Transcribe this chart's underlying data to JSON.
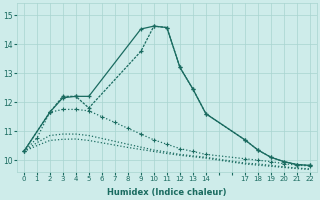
{
  "xlabel": "Humidex (Indice chaleur)",
  "bg_color": "#ceecea",
  "grid_color": "#a8d5d0",
  "line_color": "#1a6b60",
  "xtick_labels": [
    "0",
    "1",
    "2",
    "3",
    "4",
    "5",
    "6",
    "7",
    "8",
    "9",
    "10",
    "11",
    "12",
    "13",
    "14",
    "",
    "",
    "17",
    "18",
    "19",
    "20",
    "21",
    "22"
  ],
  "xtick_positions": [
    0,
    1,
    2,
    3,
    4,
    5,
    6,
    7,
    8,
    9,
    10,
    11,
    12,
    13,
    14,
    15,
    16,
    17,
    18,
    19,
    20,
    21,
    22
  ],
  "yticks": [
    10,
    11,
    12,
    13,
    14,
    15
  ],
  "ylim": [
    9.6,
    15.4
  ],
  "xlim": [
    -0.5,
    22.5
  ],
  "series1_x": [
    0,
    2,
    3,
    4,
    5,
    9,
    10,
    11,
    12,
    13,
    14,
    17,
    18,
    19,
    20,
    21,
    22
  ],
  "series1_y": [
    10.3,
    11.65,
    12.15,
    12.2,
    12.2,
    14.52,
    14.62,
    14.57,
    13.2,
    12.45,
    11.6,
    10.7,
    10.35,
    10.1,
    9.95,
    9.85,
    9.82
  ],
  "series2_x": [
    0,
    2,
    3,
    4,
    5,
    9,
    10,
    11,
    12,
    13,
    14,
    17,
    18,
    19,
    20,
    21,
    22
  ],
  "series2_y": [
    10.3,
    11.65,
    12.2,
    12.2,
    11.8,
    13.75,
    14.62,
    14.57,
    13.2,
    12.45,
    11.6,
    10.7,
    10.35,
    10.1,
    9.95,
    9.85,
    9.82
  ],
  "series3_x": [
    0,
    1,
    2,
    3,
    4,
    5,
    6,
    7,
    8,
    9,
    10,
    11,
    12,
    13,
    14,
    17,
    18,
    19,
    20,
    21,
    22
  ],
  "series3_y": [
    10.3,
    10.75,
    11.65,
    11.75,
    11.75,
    11.7,
    11.5,
    11.3,
    11.1,
    10.9,
    10.7,
    10.55,
    10.4,
    10.3,
    10.2,
    10.05,
    10.0,
    9.95,
    9.88,
    9.83,
    9.8
  ],
  "series4_x": [
    0,
    1,
    2,
    3,
    4,
    5,
    6,
    7,
    8,
    9,
    10,
    11,
    12,
    13,
    14,
    17,
    18,
    19,
    20,
    21,
    22
  ],
  "series4_y": [
    10.3,
    10.6,
    10.85,
    10.9,
    10.9,
    10.85,
    10.75,
    10.65,
    10.55,
    10.45,
    10.35,
    10.28,
    10.2,
    10.15,
    10.1,
    9.9,
    9.87,
    9.82,
    9.77,
    9.73,
    9.7
  ],
  "series5_x": [
    0,
    1,
    2,
    3,
    4,
    5,
    6,
    7,
    8,
    9,
    10,
    11,
    12,
    13,
    14,
    17,
    18,
    19,
    20,
    21,
    22
  ],
  "series5_y": [
    10.3,
    10.5,
    10.68,
    10.72,
    10.73,
    10.68,
    10.6,
    10.52,
    10.44,
    10.37,
    10.3,
    10.23,
    10.17,
    10.12,
    10.07,
    9.87,
    9.83,
    9.79,
    9.75,
    9.71,
    9.68
  ]
}
